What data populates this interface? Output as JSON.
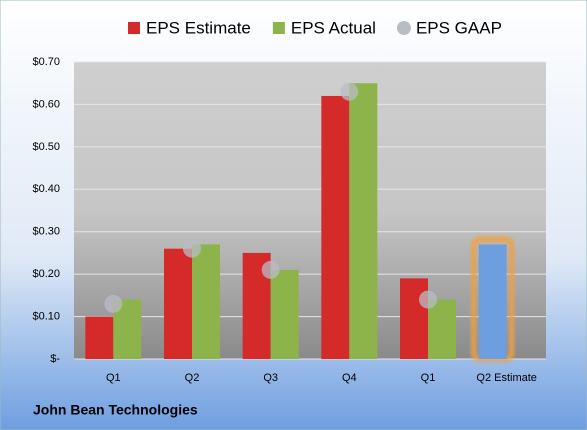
{
  "chart_data": {
    "type": "bar",
    "title": "John Bean Technologies",
    "categories": [
      "Q1",
      "Q2",
      "Q3",
      "Q4",
      "Q1",
      "Q2 Estimate"
    ],
    "series": [
      {
        "name": "EPS Estimate",
        "color": "#d42a2a",
        "values": [
          0.1,
          0.26,
          0.25,
          0.62,
          0.19,
          0.27
        ],
        "colors": [
          "#d42a2a",
          "#d42a2a",
          "#d42a2a",
          "#d42a2a",
          "#d42a2a",
          "#6d9ee0"
        ]
      },
      {
        "name": "EPS Actual",
        "color": "#8db44a",
        "values": [
          0.14,
          0.27,
          0.21,
          0.65,
          0.14,
          null
        ]
      },
      {
        "name": "EPS GAAP",
        "color": "#b8bcc4",
        "marker": "circle",
        "values": [
          0.13,
          0.26,
          0.21,
          0.63,
          0.14,
          null
        ]
      }
    ],
    "ylim": [
      0,
      0.7
    ],
    "yticks": [
      {
        "value": 0,
        "label": "$-"
      },
      {
        "value": 0.1,
        "label": "$0.10"
      },
      {
        "value": 0.2,
        "label": "$0.20"
      },
      {
        "value": 0.3,
        "label": "$0.30"
      },
      {
        "value": 0.4,
        "label": "$0.40"
      },
      {
        "value": 0.5,
        "label": "$0.50"
      },
      {
        "value": 0.6,
        "label": "$0.60"
      },
      {
        "value": 0.7,
        "label": "$0.70"
      }
    ],
    "grid": true,
    "legend": "top"
  }
}
